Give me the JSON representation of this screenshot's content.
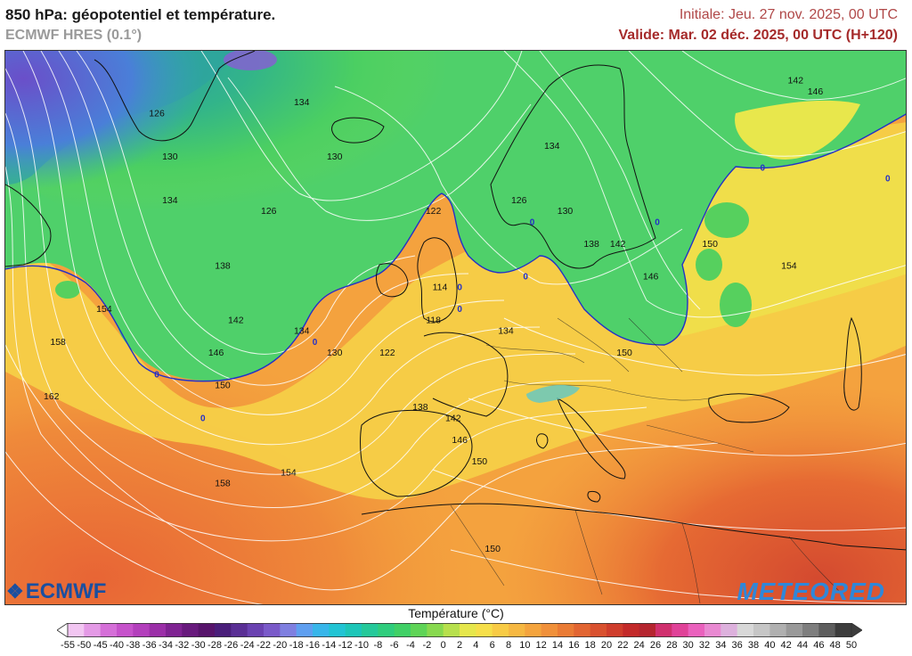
{
  "header": {
    "title": "850 hPa: géopotentiel et température.",
    "model": "ECMWF HRES (0.1°)",
    "initial": "Initiale: Jeu. 27 nov. 2025, 00 UTC",
    "valid": "Valide: Mar. 02 déc. 2025, 00 UTC (H+120)"
  },
  "logos": {
    "left": "ECMWF",
    "right": "METEORED"
  },
  "legend": {
    "title": "Température (°C)",
    "labels": [
      "-55",
      "-50",
      "-45",
      "-40",
      "-38",
      "-36",
      "-34",
      "-32",
      "-30",
      "-28",
      "-26",
      "-24",
      "-22",
      "-20",
      "-18",
      "-16",
      "-14",
      "-12",
      "-10",
      "-8",
      "-6",
      "-4",
      "-2",
      "0",
      "2",
      "4",
      "6",
      "8",
      "10",
      "12",
      "14",
      "16",
      "18",
      "20",
      "22",
      "24",
      "26",
      "28",
      "30",
      "32",
      "34",
      "36",
      "38",
      "40",
      "42",
      "44",
      "46",
      "48",
      "50"
    ],
    "colors": [
      "#ffffff",
      "#f2c6f2",
      "#e49ae6",
      "#d56fd8",
      "#c652cb",
      "#b33fbc",
      "#9b2fa8",
      "#7f2392",
      "#681a7d",
      "#57146b",
      "#4a1e7a",
      "#5a2f95",
      "#6a42b1",
      "#7a5ac9",
      "#7f7fe0",
      "#5f9ff0",
      "#38b6ea",
      "#22c4d4",
      "#1dc6b8",
      "#25c99a",
      "#2fcd7d",
      "#40d066",
      "#5fd457",
      "#88d94f",
      "#b7e04d",
      "#e6e74c",
      "#f6df4a",
      "#f8cb45",
      "#f6b842",
      "#f4a43e",
      "#f0903a",
      "#ea7b35",
      "#e26532",
      "#d9512f",
      "#cf3d2c",
      "#c32a2a",
      "#b5252f",
      "#d0306e",
      "#e04298",
      "#ea61bd",
      "#e989d2",
      "#ddb1dd",
      "#d8d8d8",
      "#c6c6c6",
      "#b0b0b0",
      "#999999",
      "#7e7e7e",
      "#5e5e5e",
      "#3d3d3d"
    ],
    "colors_end_left": "#ffffff",
    "colors_end_right": "#3d3d3d"
  },
  "map": {
    "isohypse_labels": [
      {
        "text": "126",
        "lon": -52,
        "lat": 70
      },
      {
        "text": "134",
        "lon": -30,
        "lat": 71
      },
      {
        "text": "130",
        "lon": -50,
        "lat": 66
      },
      {
        "text": "130",
        "lon": -25,
        "lat": 66
      },
      {
        "text": "134",
        "lon": -50,
        "lat": 62
      },
      {
        "text": "126",
        "lon": -35,
        "lat": 61
      },
      {
        "text": "122",
        "lon": -10,
        "lat": 61
      },
      {
        "text": "126",
        "lon": 3,
        "lat": 62
      },
      {
        "text": "130",
        "lon": 10,
        "lat": 61
      },
      {
        "text": "134",
        "lon": 8,
        "lat": 67
      },
      {
        "text": "138",
        "lon": -42,
        "lat": 56
      },
      {
        "text": "138",
        "lon": 14,
        "lat": 58
      },
      {
        "text": "142",
        "lon": 18,
        "lat": 58
      },
      {
        "text": "146",
        "lon": 23,
        "lat": 55
      },
      {
        "text": "150",
        "lon": 32,
        "lat": 58
      },
      {
        "text": "154",
        "lon": 44,
        "lat": 56
      },
      {
        "text": "142",
        "lon": -40,
        "lat": 51
      },
      {
        "text": "134",
        "lon": -30,
        "lat": 50
      },
      {
        "text": "130",
        "lon": -25,
        "lat": 48
      },
      {
        "text": "122",
        "lon": -17,
        "lat": 48
      },
      {
        "text": "114",
        "lon": -9,
        "lat": 54
      },
      {
        "text": "118",
        "lon": -10,
        "lat": 51
      },
      {
        "text": "134",
        "lon": 1,
        "lat": 50
      },
      {
        "text": "146",
        "lon": -43,
        "lat": 48
      },
      {
        "text": "150",
        "lon": -42,
        "lat": 45
      },
      {
        "text": "154",
        "lon": -60,
        "lat": 52
      },
      {
        "text": "158",
        "lon": -67,
        "lat": 49
      },
      {
        "text": "162",
        "lon": -68,
        "lat": 44
      },
      {
        "text": "138",
        "lon": -12,
        "lat": 43
      },
      {
        "text": "142",
        "lon": -7,
        "lat": 42
      },
      {
        "text": "146",
        "lon": -6,
        "lat": 40
      },
      {
        "text": "150",
        "lon": -3,
        "lat": 38
      },
      {
        "text": "150",
        "lon": 19,
        "lat": 48
      },
      {
        "text": "154",
        "lon": -32,
        "lat": 37
      },
      {
        "text": "158",
        "lon": -42,
        "lat": 36
      },
      {
        "text": "150",
        "lon": -1,
        "lat": 30
      },
      {
        "text": "142",
        "lon": 45,
        "lat": 73
      },
      {
        "text": "146",
        "lon": 48,
        "lat": 72
      }
    ],
    "zero_markers": [
      {
        "text": "0",
        "lon": -28,
        "lat": 49
      },
      {
        "text": "0",
        "lon": -52,
        "lat": 46
      },
      {
        "text": "0",
        "lon": -45,
        "lat": 42
      },
      {
        "text": "0",
        "lon": -6,
        "lat": 54
      },
      {
        "text": "0",
        "lon": 4,
        "lat": 55
      },
      {
        "text": "0",
        "lon": 5,
        "lat": 60
      },
      {
        "text": "0",
        "lon": 24,
        "lat": 60
      },
      {
        "text": "0",
        "lon": 40,
        "lat": 65
      },
      {
        "text": "0",
        "lon": 59,
        "lat": 64
      },
      {
        "text": "0",
        "lon": -6,
        "lat": 52
      }
    ]
  }
}
